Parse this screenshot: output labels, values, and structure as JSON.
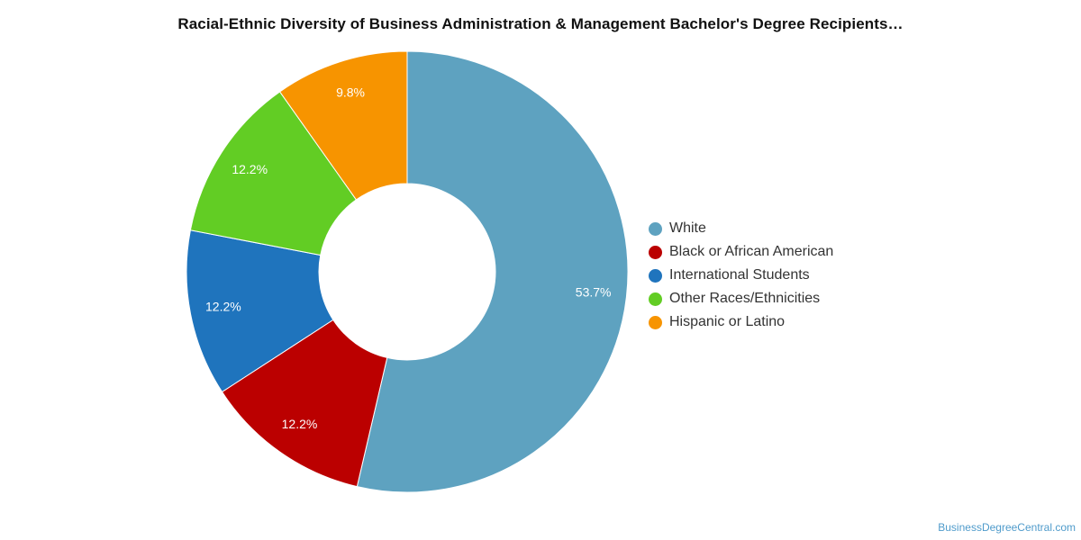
{
  "title": "Racial-Ethnic Diversity of Business Administration & Management Bachelor's Degree Recipients…",
  "credit": "BusinessDegreeCentral.com",
  "chart_data": {
    "type": "pie",
    "donut": true,
    "title": "Racial-Ethnic Diversity of Business Administration & Management Bachelor's Degree Recipients…",
    "legend_position": "right",
    "slices": [
      {
        "name": "White",
        "value": 53.7,
        "label": "53.7%",
        "color": "#5ea2c0"
      },
      {
        "name": "Black or African American",
        "value": 12.2,
        "label": "12.2%",
        "color": "#bb0000"
      },
      {
        "name": "International Students",
        "value": 12.2,
        "label": "12.2%",
        "color": "#1f74bd"
      },
      {
        "name": "Other Races/Ethnicities",
        "value": 12.2,
        "label": "12.2%",
        "color": "#62cd24"
      },
      {
        "name": "Hispanic or Latino",
        "value": 9.8,
        "label": "9.8%",
        "color": "#f79400"
      }
    ]
  }
}
